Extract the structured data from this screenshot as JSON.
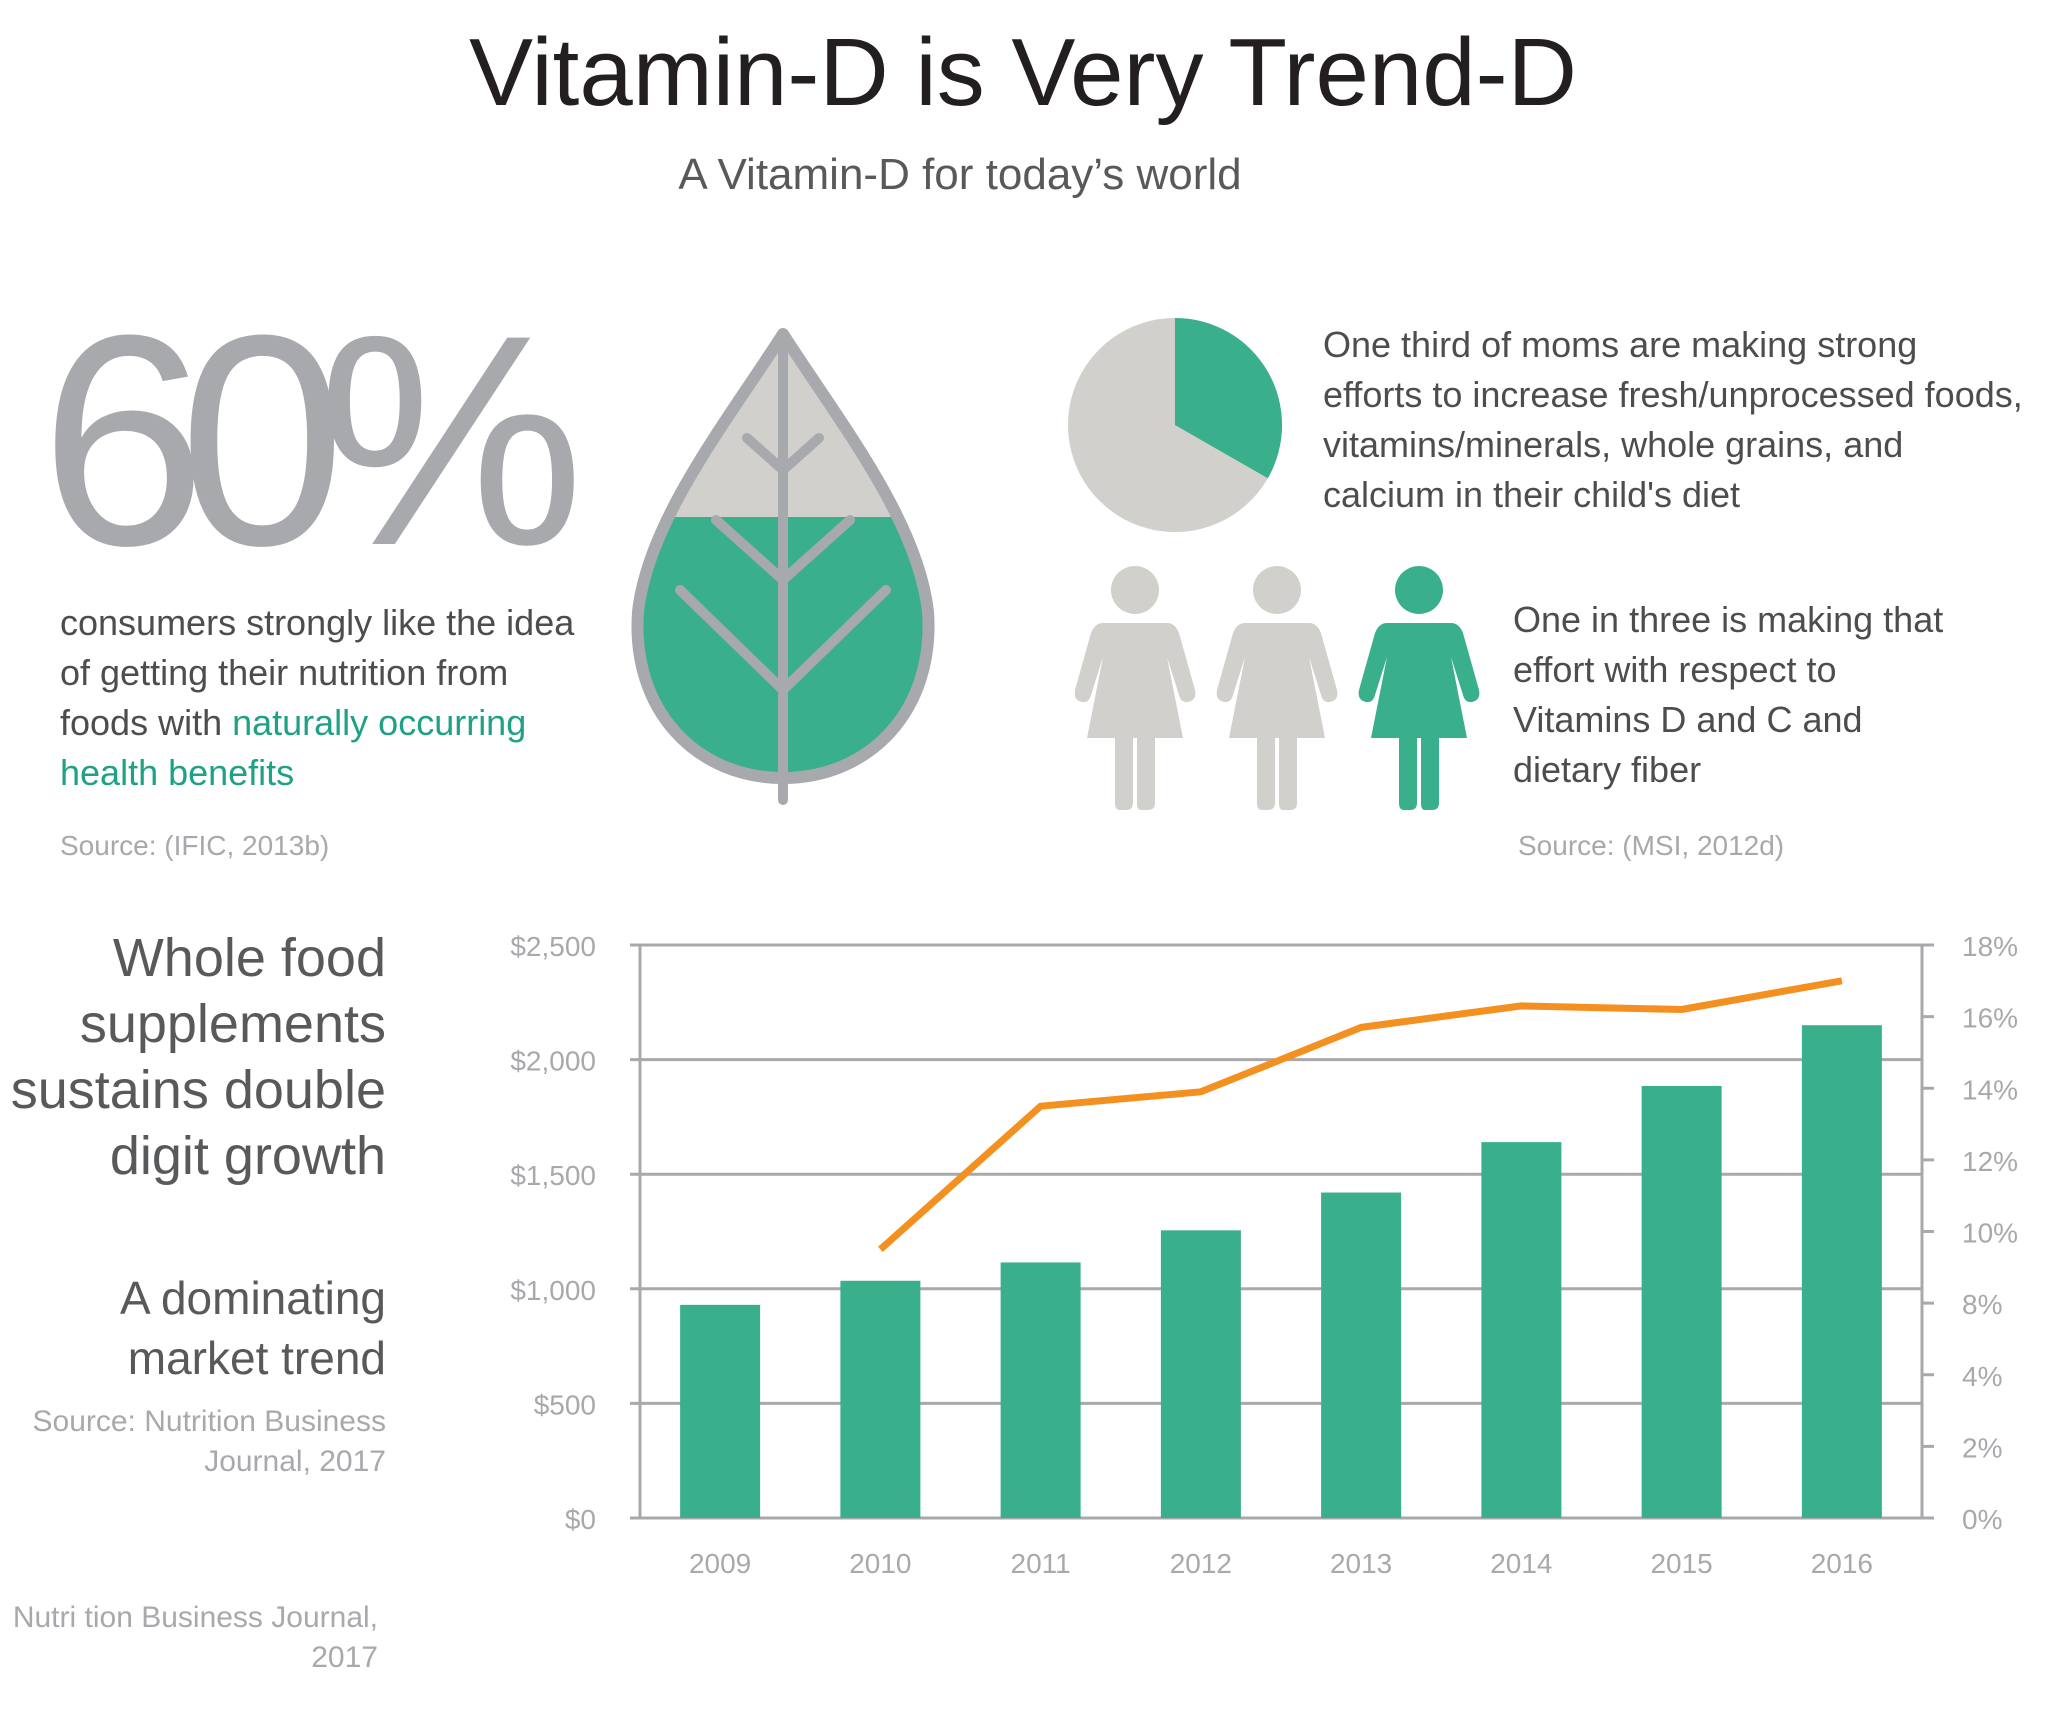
{
  "header": {
    "title": "Vitamin-D is Very Trend-D",
    "subtitle": "A Vitamin-D for today’s world"
  },
  "consumers": {
    "stat": "60%",
    "text_main": "consumers strongly like the idea of getting their nutrition from foods with ",
    "text_highlight": "naturally occurring health benefits",
    "source": "Source: (IFIC, 2013b)",
    "leaf_fill_fraction": 0.6
  },
  "moms": {
    "text": "One third of moms are making strong efforts to increase fresh/unprocessed foods, vitamins/minerals, whole grains, and calcium in their child's diet",
    "pie_fraction": 0.333,
    "effort_text": "One in three is making that effort with respect to Vitamins D and C and dietary fiber",
    "figures_total": 3,
    "figures_highlighted": 1,
    "source": "Source: (MSI, 2012d)"
  },
  "chart_section": {
    "heading": "Whole food supplements sustains double digit growth",
    "subheading": "A dominating market trend",
    "source": "Source: Nutrition Business Journal, 2017"
  },
  "footer": {
    "credit": "Nutri tion Business Journal, 2017"
  },
  "colors": {
    "green": "#3aaf8b",
    "gray": "#d1d0cc",
    "orange": "#f39020",
    "axis": "#a7a9ac"
  },
  "chart_data": {
    "type": "bar",
    "categories": [
      "2009",
      "2010",
      "2011",
      "2012",
      "2013",
      "2014",
      "2015",
      "2016"
    ],
    "series": [
      {
        "type": "bar",
        "axis": "left",
        "values": [
          930,
          1035,
          1115,
          1255,
          1420,
          1640,
          1885,
          2150
        ]
      },
      {
        "type": "line",
        "axis": "right",
        "values": [
          null,
          9.5,
          13.5,
          13.9,
          15.7,
          16.3,
          16.2,
          17.0
        ]
      }
    ],
    "y_left": {
      "ylim": [
        0,
        2500
      ],
      "ticks": [
        0,
        500,
        1000,
        1500,
        2000,
        2500
      ],
      "tick_labels": [
        "$0",
        "$500",
        "$1,000",
        "$1,500",
        "$2,000",
        "$2,500"
      ]
    },
    "y_right": {
      "tick_labels": [
        "0%",
        "2%",
        "4%",
        "8%",
        "10%",
        "12%",
        "14%",
        "16%",
        "18%"
      ]
    },
    "grid": true,
    "legend": "none"
  }
}
